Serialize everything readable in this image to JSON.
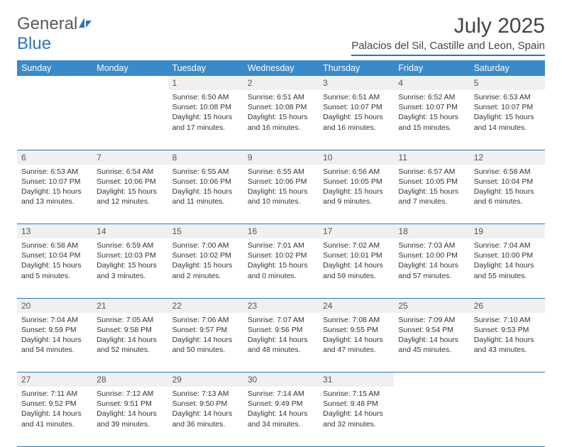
{
  "logo": {
    "text1": "General",
    "text2": "Blue"
  },
  "title": "July 2025",
  "location": "Palacios del Sil, Castille and Leon, Spain",
  "headers": [
    "Sunday",
    "Monday",
    "Tuesday",
    "Wednesday",
    "Thursday",
    "Friday",
    "Saturday"
  ],
  "colors": {
    "header_bg": "#3a8ac9",
    "header_fg": "#ffffff",
    "accent_border": "#2e75b6",
    "daynum_bg": "#eef0f2",
    "text": "#333333",
    "logo_gray": "#5a5a5a",
    "logo_blue": "#2e75b6"
  },
  "weeks": [
    [
      null,
      null,
      {
        "n": "1",
        "sr": "Sunrise: 6:50 AM",
        "ss": "Sunset: 10:08 PM",
        "d1": "Daylight: 15 hours",
        "d2": "and 17 minutes."
      },
      {
        "n": "2",
        "sr": "Sunrise: 6:51 AM",
        "ss": "Sunset: 10:08 PM",
        "d1": "Daylight: 15 hours",
        "d2": "and 16 minutes."
      },
      {
        "n": "3",
        "sr": "Sunrise: 6:51 AM",
        "ss": "Sunset: 10:07 PM",
        "d1": "Daylight: 15 hours",
        "d2": "and 16 minutes."
      },
      {
        "n": "4",
        "sr": "Sunrise: 6:52 AM",
        "ss": "Sunset: 10:07 PM",
        "d1": "Daylight: 15 hours",
        "d2": "and 15 minutes."
      },
      {
        "n": "5",
        "sr": "Sunrise: 6:53 AM",
        "ss": "Sunset: 10:07 PM",
        "d1": "Daylight: 15 hours",
        "d2": "and 14 minutes."
      }
    ],
    [
      {
        "n": "6",
        "sr": "Sunrise: 6:53 AM",
        "ss": "Sunset: 10:07 PM",
        "d1": "Daylight: 15 hours",
        "d2": "and 13 minutes."
      },
      {
        "n": "7",
        "sr": "Sunrise: 6:54 AM",
        "ss": "Sunset: 10:06 PM",
        "d1": "Daylight: 15 hours",
        "d2": "and 12 minutes."
      },
      {
        "n": "8",
        "sr": "Sunrise: 6:55 AM",
        "ss": "Sunset: 10:06 PM",
        "d1": "Daylight: 15 hours",
        "d2": "and 11 minutes."
      },
      {
        "n": "9",
        "sr": "Sunrise: 6:55 AM",
        "ss": "Sunset: 10:06 PM",
        "d1": "Daylight: 15 hours",
        "d2": "and 10 minutes."
      },
      {
        "n": "10",
        "sr": "Sunrise: 6:56 AM",
        "ss": "Sunset: 10:05 PM",
        "d1": "Daylight: 15 hours",
        "d2": "and 9 minutes."
      },
      {
        "n": "11",
        "sr": "Sunrise: 6:57 AM",
        "ss": "Sunset: 10:05 PM",
        "d1": "Daylight: 15 hours",
        "d2": "and 7 minutes."
      },
      {
        "n": "12",
        "sr": "Sunrise: 6:58 AM",
        "ss": "Sunset: 10:04 PM",
        "d1": "Daylight: 15 hours",
        "d2": "and 6 minutes."
      }
    ],
    [
      {
        "n": "13",
        "sr": "Sunrise: 6:58 AM",
        "ss": "Sunset: 10:04 PM",
        "d1": "Daylight: 15 hours",
        "d2": "and 5 minutes."
      },
      {
        "n": "14",
        "sr": "Sunrise: 6:59 AM",
        "ss": "Sunset: 10:03 PM",
        "d1": "Daylight: 15 hours",
        "d2": "and 3 minutes."
      },
      {
        "n": "15",
        "sr": "Sunrise: 7:00 AM",
        "ss": "Sunset: 10:02 PM",
        "d1": "Daylight: 15 hours",
        "d2": "and 2 minutes."
      },
      {
        "n": "16",
        "sr": "Sunrise: 7:01 AM",
        "ss": "Sunset: 10:02 PM",
        "d1": "Daylight: 15 hours",
        "d2": "and 0 minutes."
      },
      {
        "n": "17",
        "sr": "Sunrise: 7:02 AM",
        "ss": "Sunset: 10:01 PM",
        "d1": "Daylight: 14 hours",
        "d2": "and 59 minutes."
      },
      {
        "n": "18",
        "sr": "Sunrise: 7:03 AM",
        "ss": "Sunset: 10:00 PM",
        "d1": "Daylight: 14 hours",
        "d2": "and 57 minutes."
      },
      {
        "n": "19",
        "sr": "Sunrise: 7:04 AM",
        "ss": "Sunset: 10:00 PM",
        "d1": "Daylight: 14 hours",
        "d2": "and 55 minutes."
      }
    ],
    [
      {
        "n": "20",
        "sr": "Sunrise: 7:04 AM",
        "ss": "Sunset: 9:59 PM",
        "d1": "Daylight: 14 hours",
        "d2": "and 54 minutes."
      },
      {
        "n": "21",
        "sr": "Sunrise: 7:05 AM",
        "ss": "Sunset: 9:58 PM",
        "d1": "Daylight: 14 hours",
        "d2": "and 52 minutes."
      },
      {
        "n": "22",
        "sr": "Sunrise: 7:06 AM",
        "ss": "Sunset: 9:57 PM",
        "d1": "Daylight: 14 hours",
        "d2": "and 50 minutes."
      },
      {
        "n": "23",
        "sr": "Sunrise: 7:07 AM",
        "ss": "Sunset: 9:56 PM",
        "d1": "Daylight: 14 hours",
        "d2": "and 48 minutes."
      },
      {
        "n": "24",
        "sr": "Sunrise: 7:08 AM",
        "ss": "Sunset: 9:55 PM",
        "d1": "Daylight: 14 hours",
        "d2": "and 47 minutes."
      },
      {
        "n": "25",
        "sr": "Sunrise: 7:09 AM",
        "ss": "Sunset: 9:54 PM",
        "d1": "Daylight: 14 hours",
        "d2": "and 45 minutes."
      },
      {
        "n": "26",
        "sr": "Sunrise: 7:10 AM",
        "ss": "Sunset: 9:53 PM",
        "d1": "Daylight: 14 hours",
        "d2": "and 43 minutes."
      }
    ],
    [
      {
        "n": "27",
        "sr": "Sunrise: 7:11 AM",
        "ss": "Sunset: 9:52 PM",
        "d1": "Daylight: 14 hours",
        "d2": "and 41 minutes."
      },
      {
        "n": "28",
        "sr": "Sunrise: 7:12 AM",
        "ss": "Sunset: 9:51 PM",
        "d1": "Daylight: 14 hours",
        "d2": "and 39 minutes."
      },
      {
        "n": "29",
        "sr": "Sunrise: 7:13 AM",
        "ss": "Sunset: 9:50 PM",
        "d1": "Daylight: 14 hours",
        "d2": "and 36 minutes."
      },
      {
        "n": "30",
        "sr": "Sunrise: 7:14 AM",
        "ss": "Sunset: 9:49 PM",
        "d1": "Daylight: 14 hours",
        "d2": "and 34 minutes."
      },
      {
        "n": "31",
        "sr": "Sunrise: 7:15 AM",
        "ss": "Sunset: 9:48 PM",
        "d1": "Daylight: 14 hours",
        "d2": "and 32 minutes."
      },
      null,
      null
    ]
  ]
}
